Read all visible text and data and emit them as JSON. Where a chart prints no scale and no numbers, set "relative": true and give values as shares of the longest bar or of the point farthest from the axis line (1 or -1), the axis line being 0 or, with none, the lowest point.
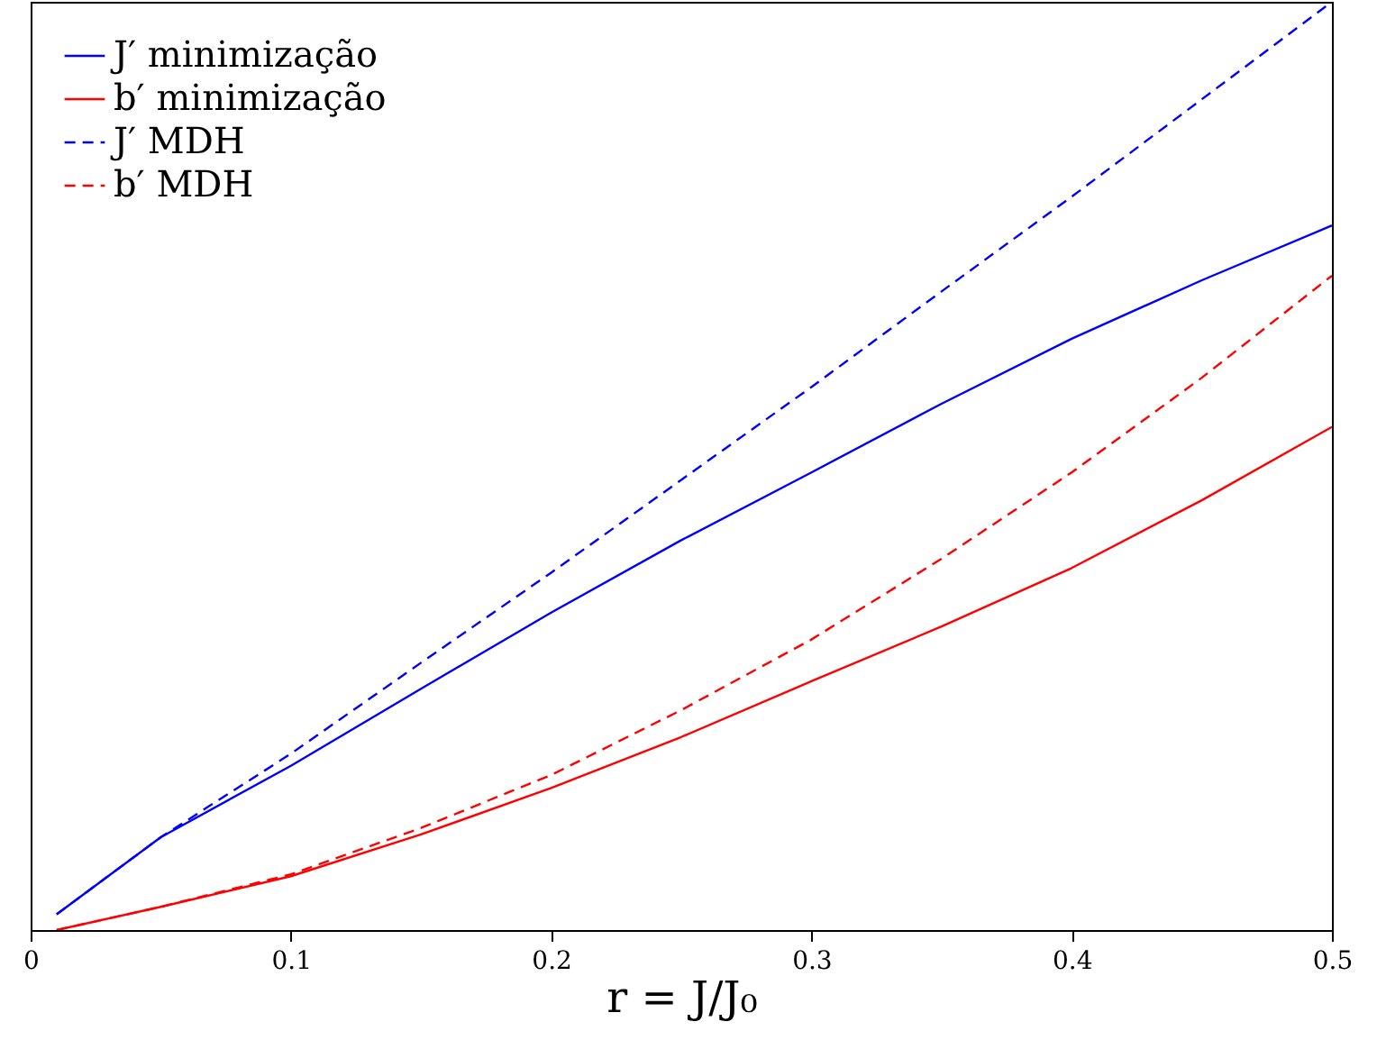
{
  "chart_data": {
    "type": "line",
    "relative": true,
    "xlabel": "r = J/J₀",
    "xlim": [
      0,
      0.5
    ],
    "xticks": [
      0,
      0.1,
      0.2,
      0.3,
      0.4,
      0.5
    ],
    "legend": "top left",
    "grid": false,
    "marker": "none",
    "x": [
      0.01,
      0.05,
      0.1,
      0.15,
      0.2,
      0.25,
      0.3,
      0.35,
      0.4,
      0.45,
      0.5
    ],
    "series": [
      {
        "name": "J′ minimização",
        "color": "#0000ff",
        "line_style": "solid",
        "values": [
          0.017,
          0.1,
          0.177,
          0.26,
          0.342,
          0.42,
          0.493,
          0.567,
          0.637,
          0.7,
          0.759
        ]
      },
      {
        "name": "b′ minimização",
        "color": "#ff0000",
        "line_style": "solid",
        "values": [
          0,
          0.025,
          0.058,
          0.103,
          0.153,
          0.208,
          0.268,
          0.327,
          0.39,
          0.463,
          0.542
        ]
      },
      {
        "name": "J′ MDH",
        "color": "#0000ff",
        "line_style": "dashed",
        "values": [
          0.017,
          0.1,
          0.19,
          0.288,
          0.385,
          0.485,
          0.585,
          0.688,
          0.79,
          0.895,
          1.0
        ]
      },
      {
        "name": "b′ MDH",
        "color": "#ff0000",
        "line_style": "dashed",
        "values": [
          0,
          0.025,
          0.06,
          0.11,
          0.167,
          0.237,
          0.313,
          0.4,
          0.493,
          0.595,
          0.705
        ]
      }
    ]
  }
}
